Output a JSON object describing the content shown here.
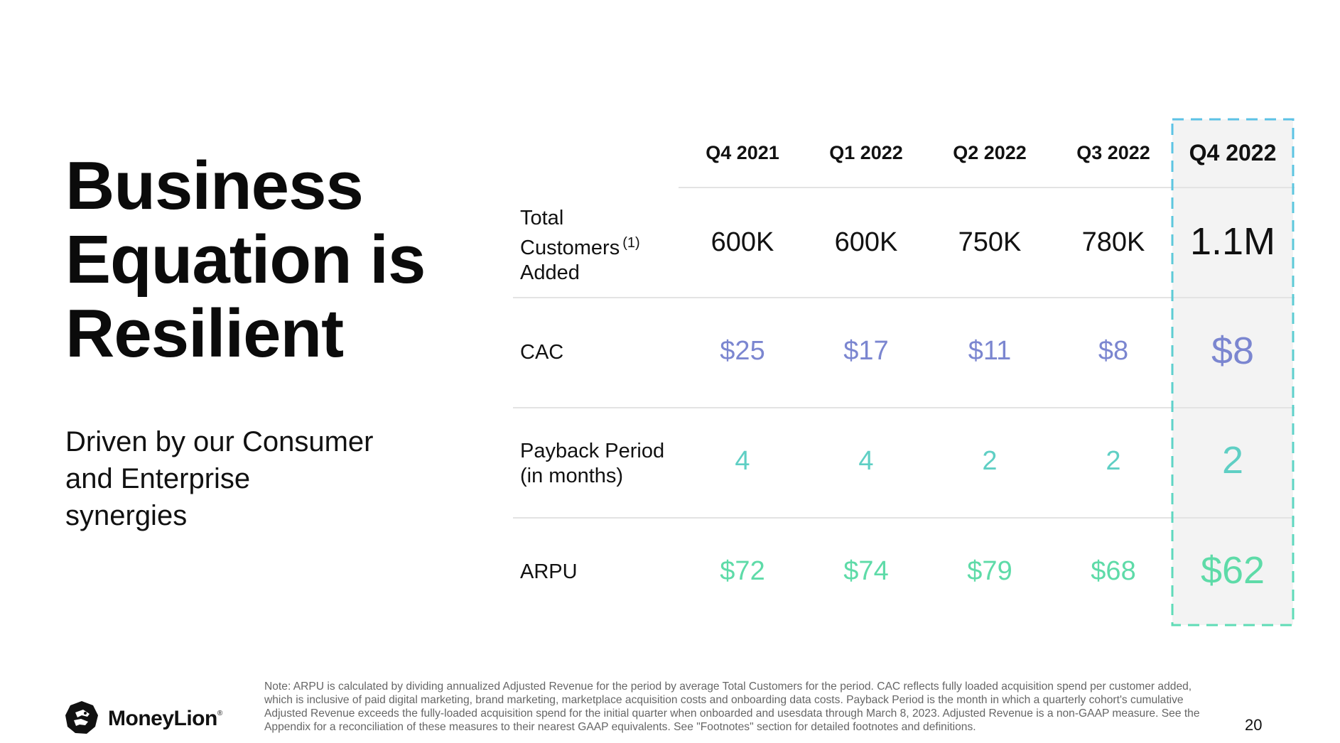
{
  "title": [
    "Business",
    "Equation is",
    "Resilient"
  ],
  "subtitle": [
    "Driven by our Consumer",
    "and Enterprise",
    "synergies"
  ],
  "colors": {
    "cac": "#7b86d0",
    "payback": "#5fcfc4",
    "arpu": "#5edba8",
    "highlight_border_top": "#5cc2e6",
    "highlight_border_bottom": "#5fdcb6",
    "highlight_fill": "#f3f3f3"
  },
  "table": {
    "columns": [
      "Q4 2021",
      "Q1 2022",
      "Q2 2022",
      "Q3 2022",
      "Q4 2022"
    ],
    "highlight_column": "Q4 2022",
    "rows": [
      {
        "label_lines": [
          "Total",
          "Customers",
          "Added"
        ],
        "footnote_ref": "(1)",
        "values": [
          "600K",
          "600K",
          "750K",
          "780K",
          "1.1M"
        ]
      },
      {
        "label_lines": [
          "CAC"
        ],
        "values": [
          "$25",
          "$17",
          "$11",
          "$8",
          "$8"
        ]
      },
      {
        "label_lines": [
          "Payback Period",
          "(in months)"
        ],
        "values": [
          "4",
          "4",
          "2",
          "2",
          "2"
        ]
      },
      {
        "label_lines": [
          "ARPU"
        ],
        "values": [
          "$72",
          "$74",
          "$79",
          "$68",
          "$62"
        ]
      }
    ]
  },
  "footer": {
    "logo_text": "MoneyLion",
    "logo_registered": "®",
    "logo_icon": "lion-head-icon",
    "note": "Note: ARPU is calculated by dividing annualized Adjusted Revenue for the period by average Total Customers for the period. CAC reflects fully loaded acquisition spend per customer added, which is inclusive of paid digital marketing, brand marketing, marketplace acquisition costs and onboarding data costs. Payback Period is the month in which a quarterly cohort's cumulative Adjusted Revenue exceeds the fully-loaded acquisition spend for the initial quarter when onboarded and usesdata through March 8, 2023. Adjusted Revenue is a non-GAAP measure. See the Appendix for a reconciliation of these measures to their nearest GAAP equivalents. See \"Footnotes\" section for detailed footnotes and definitions.",
    "page_number": "20"
  }
}
